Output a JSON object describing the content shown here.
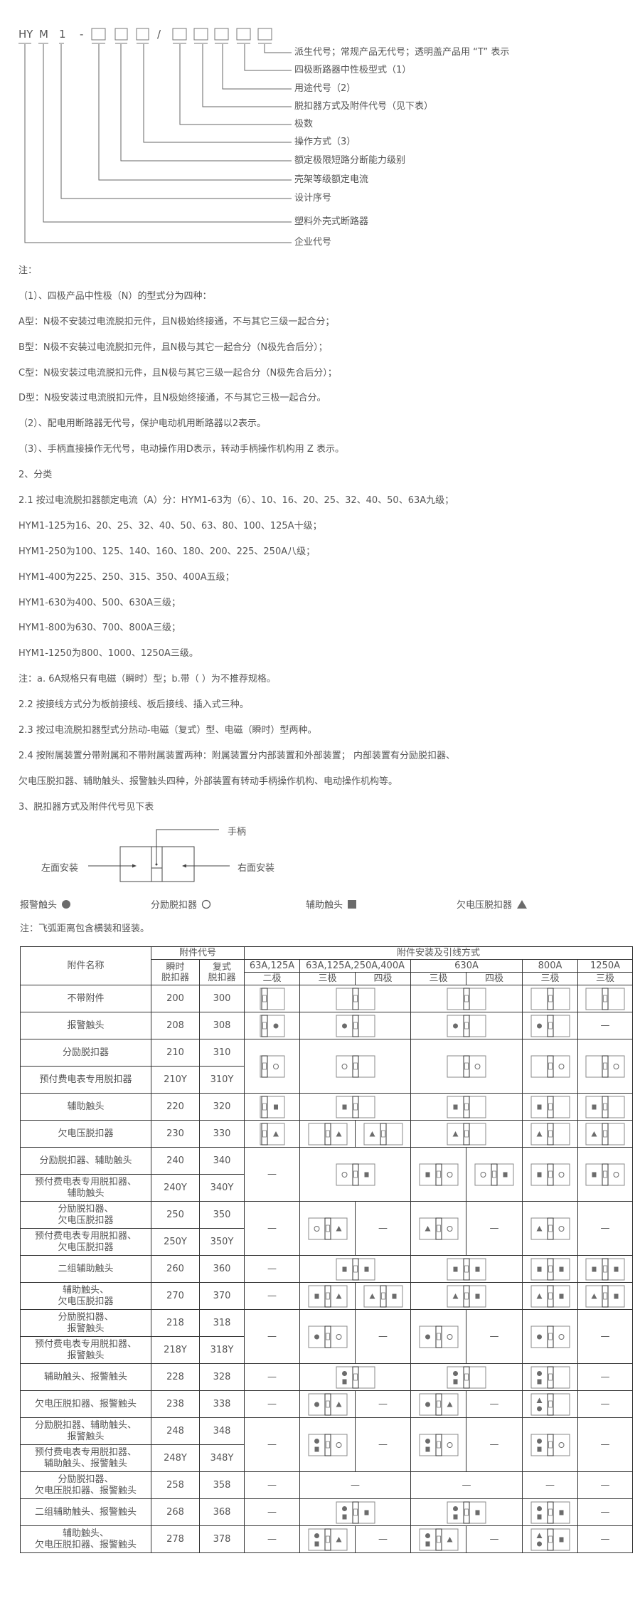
{
  "model_code": {
    "tokens": [
      "HY",
      "M",
      "1",
      "-",
      "/"
    ],
    "box_glyph": "□",
    "labels": [
      "派生代号；常规产品无代号；透明盖产品用 “T” 表示",
      "四极断路器中性极型式（1）",
      "用途代号（2）",
      "脱扣器方式及附件代号（见下表）",
      "极数",
      "操作方式（3）",
      "额定极限短路分断能力级别",
      "壳架等级额定电流",
      "设计序号",
      "塑料外壳式断路器",
      "企业代号"
    ]
  },
  "notes": [
    "注：",
    "（1）、四极产品中性极（N）的型式分为四种：",
    "A型：N极不安装过电流脱扣元件，且N极始终接通，不与其它三级一起合分；",
    "B型：N极不安装过电流脱扣元件，且N极与其它一起合分（N极先合后分）；",
    "C型：N极安装过电流脱扣元件，且N极与其它三级一起合分（N极先合后分）；",
    "D型：N极安装过电流脱扣元件，且N极始终接通，不与其它三极一起合分。",
    "（2）、配电用断路器无代号，保护电动机用断路器以2表示。",
    "（3）、手柄直接操作无代号，电动操作用D表示，转动手柄操作机构用 Z 表示。",
    "2、分类",
    "2.1 按过电流脱扣器额定电流（A）分：HYM1-63为（6）、10、16、20、25、32、40、50、63A九级；",
    "HYM1-125为16、20、25、32、40、50、63、80、100、125A十级；",
    "HYM1-250为100、125、140、160、180、200、225、250A八级；",
    "HYM1-400为225、250、315、350、400A五级；",
    "HYM1-630为400、500、630A三级；",
    "HYM1-800为630、700、800A三级；",
    "HYM1-1250为800、1000、1250A三级。",
    "注：a. 6A规格只有电磁（瞬时）型；b.带（ ）为不推荐规格。",
    "2.2 按接线方式分为板前接线、板后接线、插入式三种。",
    "2.3 按过电流脱扣器型式分热动-电磁（复式）型、电磁（瞬时）型两种。",
    "2.4 按附属装置分带附属和不带附属装置两种：附属装置分内部装置和外部装置； 内部装置有分励脱扣器、",
    "欠电压脱扣器、辅助触头、报警触头四种，外部装置有转动手柄操作机构、电动操作机构等。",
    "3、脱扣器方式及附件代号见下表"
  ],
  "mounting": {
    "handle": "手柄",
    "left": "左面安装",
    "right": "右面安装"
  },
  "legend": [
    {
      "label": "报警触头",
      "symbol": "A",
      "icon": "filled-circle"
    },
    {
      "label": "分励脱扣器",
      "symbol": "S",
      "icon": "open-circle"
    },
    {
      "label": "辅助触头",
      "symbol": "X",
      "icon": "filled-square"
    },
    {
      "label": "欠电压脱扣器",
      "symbol": "U",
      "icon": "filled-triangle"
    }
  ],
  "legend_note": "注：飞弧距离包含横装和竖装。",
  "colors": {
    "symbol": "#6b6b6b",
    "border": "#333333",
    "text": "#555555"
  },
  "table": {
    "headers": {
      "name": "附件名称",
      "code_group": "附件代号",
      "instant": "瞬时\n脱扣器",
      "compound": "复式\n脱扣器",
      "install_group": "附件安装及引线方式",
      "ratings": [
        "63A,125A",
        "63A,125A,250A,400A",
        "630A",
        "800A",
        "1250A"
      ],
      "poles": [
        "二极",
        "三极",
        "四极",
        "三极",
        "四极",
        "三极",
        "三极"
      ]
    },
    "groups": [
      {
        "items": [
          {
            "name": "不带附件",
            "instant": "200",
            "compound": "300"
          }
        ],
        "cells": [
          {
            "d": "|",
            "span": 1
          },
          {
            "d": "|",
            "span": 2
          },
          {
            "d": "|",
            "span": 2
          },
          {
            "d": "|",
            "span": 1
          },
          {
            "d": "|",
            "span": 1
          }
        ]
      },
      {
        "items": [
          {
            "name": "报警触头",
            "instant": "208",
            "compound": "308"
          }
        ],
        "cells": [
          {
            "d": "|A",
            "span": 1
          },
          {
            "d": "A|",
            "span": 2
          },
          {
            "d": "A|",
            "span": 2
          },
          {
            "d": "A|",
            "span": 1
          },
          {
            "d": "—",
            "span": 1
          }
        ]
      },
      {
        "items": [
          {
            "name": "分励脱扣器",
            "instant": "210",
            "compound": "310"
          },
          {
            "name": "预付费电表专用脱扣器",
            "instant": "210Y",
            "compound": "310Y"
          }
        ],
        "cells": [
          {
            "d": "|S",
            "span": 1
          },
          {
            "d": "S|",
            "span": 2
          },
          {
            "d": "|S",
            "span": 2
          },
          {
            "d": "|S",
            "span": 1
          },
          {
            "d": "|S",
            "span": 1
          }
        ]
      },
      {
        "items": [
          {
            "name": "辅助触头",
            "instant": "220",
            "compound": "320"
          }
        ],
        "cells": [
          {
            "d": "|X",
            "span": 1
          },
          {
            "d": "X|",
            "span": 2
          },
          {
            "d": "X|",
            "span": 2
          },
          {
            "d": "X|",
            "span": 1
          },
          {
            "d": "X|",
            "span": 1
          }
        ]
      },
      {
        "items": [
          {
            "name": "欠电压脱扣器",
            "instant": "230",
            "compound": "330"
          }
        ],
        "cells": [
          {
            "d": "|U",
            "span": 1
          },
          {
            "d": "|U",
            "span": 1
          },
          {
            "d": "U|",
            "span": 1
          },
          {
            "d": "U|",
            "span": 2
          },
          {
            "d": "U|",
            "span": 1
          },
          {
            "d": "U|",
            "span": 1
          }
        ]
      },
      {
        "items": [
          {
            "name": "分励脱扣器、辅助触头",
            "instant": "240",
            "compound": "340"
          },
          {
            "name": "预付费电表专用脱扣器、\n辅助触头",
            "instant": "240Y",
            "compound": "340Y"
          }
        ],
        "cells": [
          {
            "d": "—",
            "span": 1
          },
          {
            "d": "S|X",
            "span": 2
          },
          {
            "d": "X|S",
            "span": 1
          },
          {
            "d": "S|X",
            "span": 1
          },
          {
            "d": "X|S",
            "span": 1
          },
          {
            "d": "X|S",
            "span": 1
          }
        ]
      },
      {
        "items": [
          {
            "name": "分励脱扣器、\n欠电压脱扣器",
            "instant": "250",
            "compound": "350"
          },
          {
            "name": "预付费电表专用脱扣器、\n欠电压脱扣器",
            "instant": "250Y",
            "compound": "350Y"
          }
        ],
        "cells": [
          {
            "d": "—",
            "span": 1
          },
          {
            "d": "S|U",
            "span": 1
          },
          {
            "d": "—",
            "span": 1
          },
          {
            "d": "U|S",
            "span": 1
          },
          {
            "d": "—",
            "span": 1
          },
          {
            "d": "U|S",
            "span": 1
          },
          {
            "d": "—",
            "span": 1
          }
        ]
      },
      {
        "items": [
          {
            "name": "二组辅助触头",
            "instant": "260",
            "compound": "360"
          }
        ],
        "cells": [
          {
            "d": "—",
            "span": 1
          },
          {
            "d": "X|X",
            "span": 2
          },
          {
            "d": "X|X",
            "span": 2
          },
          {
            "d": "X|X",
            "span": 1
          },
          {
            "d": "X|X",
            "span": 1
          }
        ]
      },
      {
        "items": [
          {
            "name": "辅助触头、\n欠电压脱扣器",
            "instant": "270",
            "compound": "370"
          }
        ],
        "cells": [
          {
            "d": "—",
            "span": 1
          },
          {
            "d": "X|U",
            "span": 1
          },
          {
            "d": "U|X",
            "span": 1
          },
          {
            "d": "U|X",
            "span": 2
          },
          {
            "d": "U|X",
            "span": 1
          },
          {
            "d": "U|X",
            "span": 1
          }
        ]
      },
      {
        "items": [
          {
            "name": "分励脱扣器、\n报警触头",
            "instant": "218",
            "compound": "318"
          },
          {
            "name": "预付费电表专用脱扣器、\n报警触头",
            "instant": "218Y",
            "compound": "318Y"
          }
        ],
        "cells": [
          {
            "d": "—",
            "span": 1
          },
          {
            "d": "A|S",
            "span": 1
          },
          {
            "d": "—",
            "span": 1
          },
          {
            "d": "A|S",
            "span": 1
          },
          {
            "d": "—",
            "span": 1
          },
          {
            "d": "A|S",
            "span": 1
          },
          {
            "d": "—",
            "span": 1
          }
        ]
      },
      {
        "items": [
          {
            "name": "辅助触头、报警触头",
            "instant": "228",
            "compound": "328"
          }
        ],
        "cells": [
          {
            "d": "—",
            "span": 1
          },
          {
            "d": "A/X|",
            "span": 2
          },
          {
            "d": "A/X|",
            "span": 2
          },
          {
            "d": "A/X|",
            "span": 1
          },
          {
            "d": "—",
            "span": 1
          }
        ]
      },
      {
        "items": [
          {
            "name": "欠电压脱扣器、报警触头",
            "instant": "238",
            "compound": "338"
          }
        ],
        "cells": [
          {
            "d": "—",
            "span": 1
          },
          {
            "d": "A|U",
            "span": 1
          },
          {
            "d": "—",
            "span": 1
          },
          {
            "d": "A|U",
            "span": 1
          },
          {
            "d": "—",
            "span": 1
          },
          {
            "d": "U/A|",
            "span": 1
          },
          {
            "d": "—",
            "span": 1
          }
        ]
      },
      {
        "items": [
          {
            "name": "分励脱扣器、辅助触头、\n报警触头",
            "instant": "248",
            "compound": "348"
          },
          {
            "name": "预付费电表专用脱扣器、\n辅助触头、报警触头",
            "instant": "248Y",
            "compound": "348Y"
          }
        ],
        "cells": [
          {
            "d": "—",
            "span": 1
          },
          {
            "d": "A/X|S",
            "span": 1
          },
          {
            "d": "—",
            "span": 1
          },
          {
            "d": "A/X|S",
            "span": 1
          },
          {
            "d": "—",
            "span": 1
          },
          {
            "d": "A/X|S",
            "span": 1
          },
          {
            "d": "—",
            "span": 1
          }
        ]
      },
      {
        "items": [
          {
            "name": "分励脱扣器、\n欠电压脱扣器、报警触头",
            "instant": "258",
            "compound": "358"
          }
        ],
        "cells": [
          {
            "d": "—",
            "span": 1
          },
          {
            "d": "—",
            "span": 2
          },
          {
            "d": "—",
            "span": 2
          },
          {
            "d": "—",
            "span": 1
          },
          {
            "d": "—",
            "span": 1
          }
        ]
      },
      {
        "items": [
          {
            "name": "二组辅助触头、报警触头",
            "instant": "268",
            "compound": "368"
          }
        ],
        "cells": [
          {
            "d": "—",
            "span": 1
          },
          {
            "d": "A/X|X",
            "span": 2
          },
          {
            "d": "A/X|X",
            "span": 2
          },
          {
            "d": "A/X|X",
            "span": 1
          },
          {
            "d": "—",
            "span": 1
          }
        ]
      },
      {
        "items": [
          {
            "name": "辅助触头、\n欠电压脱扣器、报警触头",
            "instant": "278",
            "compound": "378"
          }
        ],
        "cells": [
          {
            "d": "—",
            "span": 1
          },
          {
            "d": "A/X|U",
            "span": 1
          },
          {
            "d": "—",
            "span": 1
          },
          {
            "d": "A/X|U",
            "span": 1
          },
          {
            "d": "—",
            "span": 1
          },
          {
            "d": "U/A|X",
            "span": 1
          },
          {
            "d": "—",
            "span": 1
          }
        ]
      }
    ]
  }
}
